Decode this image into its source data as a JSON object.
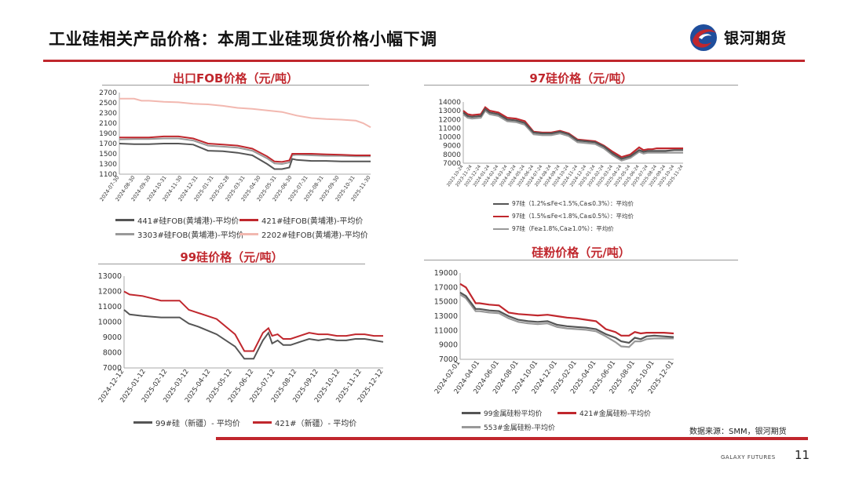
{
  "header": {
    "title": "工业硅相关产品价格：本周工业硅现货价格小幅下调",
    "logo_text": "银河期货",
    "brand_color": "#c0272d"
  },
  "footer": {
    "source": "数据来源：SMM，银河期货",
    "brand": "GALAXY FUTURES",
    "page_number": "11"
  },
  "chart_data": [
    {
      "id": "fob",
      "type": "line",
      "title": "出口FOB价格（元/吨）",
      "ylim": [
        1100,
        2700
      ],
      "yticks": [
        1100,
        1300,
        1500,
        1700,
        1900,
        2100,
        2300,
        2500,
        2700
      ],
      "xlim": [
        0,
        17
      ],
      "xtick_labels": [
        "2024-07-30",
        "2024-08-30",
        "2024-09-30",
        "2024-10-31",
        "2024-11-30",
        "2024-12-31",
        "2025-01-31",
        "2025-02-28",
        "2025-03-31",
        "2025-04-30",
        "2025-05-31",
        "2025-06-30",
        "2025-07-31",
        "2025-08-31",
        "2025-09-30",
        "2025-10-31",
        "2025-11-30"
      ],
      "series": [
        {
          "name": "441#硅FOB(黄埔港)-平均价",
          "color": "#555555",
          "x": [
            0,
            1,
            2,
            3,
            4,
            5,
            6,
            7,
            8,
            9,
            10,
            10.5,
            11,
            11.5,
            11.7,
            12,
            13,
            14,
            15,
            16,
            17
          ],
          "y": [
            1700,
            1690,
            1690,
            1700,
            1700,
            1680,
            1560,
            1550,
            1520,
            1470,
            1300,
            1200,
            1200,
            1230,
            1400,
            1380,
            1360,
            1360,
            1350,
            1350,
            1350
          ]
        },
        {
          "name": "421#硅FOB(黄埔港)-平均价",
          "color": "#c0272d",
          "x": [
            0,
            1,
            2,
            3,
            4,
            5,
            6,
            7,
            8,
            9,
            10,
            10.5,
            11,
            11.5,
            11.7,
            12,
            13,
            14,
            15,
            16,
            17
          ],
          "y": [
            1820,
            1820,
            1820,
            1840,
            1840,
            1800,
            1700,
            1680,
            1660,
            1600,
            1450,
            1350,
            1340,
            1370,
            1500,
            1500,
            1500,
            1490,
            1480,
            1470,
            1470
          ]
        },
        {
          "name": "3303#硅FOB(黄埔港)-平均价",
          "color": "#999999",
          "x": [
            0,
            1,
            2,
            3,
            4,
            5,
            6,
            7,
            8,
            9,
            10,
            10.5,
            11,
            11.5,
            11.7,
            12,
            13,
            14,
            15,
            16,
            17
          ],
          "y": [
            1780,
            1790,
            1790,
            1800,
            1800,
            1760,
            1660,
            1640,
            1620,
            1560,
            1410,
            1310,
            1300,
            1330,
            1470,
            1480,
            1470,
            1460,
            1460,
            1450,
            1450
          ]
        },
        {
          "name": "2202#硅FOB(黄埔港)-平均价",
          "color": "#f2b8b0",
          "x": [
            0,
            1,
            1.5,
            2,
            3,
            4,
            5,
            6,
            7,
            8,
            9,
            10,
            11,
            12,
            13,
            14,
            15,
            16,
            16.5,
            17
          ],
          "y": [
            2580,
            2580,
            2540,
            2540,
            2520,
            2510,
            2480,
            2470,
            2440,
            2400,
            2380,
            2350,
            2320,
            2250,
            2200,
            2180,
            2170,
            2150,
            2100,
            2020
          ]
        }
      ]
    },
    {
      "id": "si97",
      "type": "line",
      "title": "97硅价格（元/吨）",
      "ylim": [
        7000,
        14000
      ],
      "yticks": [
        7000,
        8000,
        9000,
        10000,
        11000,
        12000,
        13000,
        14000
      ],
      "xlim": [
        0,
        25
      ],
      "xtick_labels": [
        "2023-10-24",
        "2023-11-24",
        "2023-12-24",
        "2024-01-24",
        "2024-02-24",
        "2024-03-24",
        "2024-04-24",
        "2024-05-24",
        "2024-06-24",
        "2024-07-24",
        "2024-08-24",
        "2024-09-24",
        "2024-10-24",
        "2024-11-24",
        "2024-12-24",
        "2025-01-24",
        "2025-02-24",
        "2025-03-24",
        "2025-04-24",
        "2025-05-24",
        "2025-06-24",
        "2025-07-24",
        "2025-08-24",
        "2025-09-24",
        "2025-10-24",
        "2025-11-24"
      ],
      "series": [
        {
          "name": "97硅（1.2%≤Fe<1.5%,Ca≤0.3%）：平均价",
          "color": "#555555",
          "x": [
            0,
            0.5,
            1,
            2,
            2.5,
            3,
            4,
            5,
            6,
            7,
            8,
            9,
            10,
            11,
            12,
            13,
            14,
            15,
            16,
            17,
            18,
            19,
            20,
            20.5,
            21,
            21.5,
            22,
            23,
            24,
            25
          ],
          "y": [
            12800,
            12400,
            12300,
            12400,
            13200,
            12800,
            12600,
            12000,
            11900,
            11600,
            10500,
            10400,
            10400,
            10600,
            10300,
            9600,
            9500,
            9400,
            8900,
            8100,
            7500,
            7800,
            8500,
            8300,
            8400,
            8400,
            8400,
            8400,
            8500,
            8500
          ]
        },
        {
          "name": "97硅（1.5%≤Fe<1.8%,Ca≤0.5%）：平均价",
          "color": "#c0272d",
          "x": [
            0,
            0.5,
            1,
            2,
            2.5,
            3,
            4,
            5,
            6,
            7,
            8,
            9,
            10,
            11,
            12,
            13,
            14,
            15,
            16,
            17,
            18,
            19,
            20,
            20.5,
            21,
            21.5,
            22,
            23,
            24,
            25
          ],
          "y": [
            13000,
            12600,
            12500,
            12600,
            13400,
            13000,
            12800,
            12200,
            12100,
            11800,
            10600,
            10500,
            10500,
            10700,
            10400,
            9700,
            9600,
            9500,
            9000,
            8300,
            7700,
            8000,
            8800,
            8500,
            8600,
            8600,
            8700,
            8700,
            8700,
            8700
          ]
        },
        {
          "name": "97硅（Fe≥1.8%,Ca≥1.0%）：平均价",
          "color": "#999999",
          "x": [
            0,
            0.5,
            1,
            2,
            2.5,
            3,
            4,
            5,
            6,
            7,
            8,
            9,
            10,
            11,
            12,
            13,
            14,
            15,
            16,
            17,
            18,
            19,
            20,
            20.5,
            21,
            21.5,
            22,
            23,
            24,
            25
          ],
          "y": [
            12600,
            12200,
            12100,
            12200,
            13000,
            12600,
            12400,
            11800,
            11700,
            11400,
            10300,
            10200,
            10200,
            10400,
            10100,
            9400,
            9300,
            9200,
            8700,
            7900,
            7300,
            7600,
            8300,
            8100,
            8200,
            8200,
            8200,
            8200,
            8200,
            8200
          ]
        }
      ]
    },
    {
      "id": "si99",
      "type": "line",
      "title": "99硅价格（元/吨）",
      "ylim": [
        7000,
        13000
      ],
      "yticks": [
        7000,
        8000,
        9000,
        10000,
        11000,
        12000,
        13000
      ],
      "xlim": [
        0,
        14
      ],
      "xtick_labels": [
        "2024-12-12",
        "2025-01-12",
        "2025-02-12",
        "2025-03-12",
        "2025-04-12",
        "2025-05-12",
        "2025-06-12",
        "2025-07-12",
        "2025-08-12",
        "2025-09-12",
        "2025-10-12",
        "2025-11-12",
        "2025-12-12"
      ],
      "series": [
        {
          "name": "99#硅（新疆）- 平均价",
          "color": "#555555",
          "x": [
            0,
            0.3,
            1,
            2,
            3,
            3.5,
            4,
            5,
            6,
            6.5,
            7,
            7.5,
            7.8,
            8,
            8.3,
            8.6,
            9,
            9.5,
            10,
            10.5,
            11,
            11.5,
            12,
            12.5,
            13,
            13.5,
            14
          ],
          "y": [
            10800,
            10500,
            10400,
            10300,
            10300,
            9900,
            9700,
            9200,
            8400,
            7600,
            7600,
            8800,
            9300,
            8600,
            8800,
            8500,
            8500,
            8700,
            8900,
            8800,
            8900,
            8800,
            8800,
            8900,
            8900,
            8800,
            8700
          ]
        },
        {
          "name": "421#（新疆）- 平均价",
          "color": "#c0272d",
          "x": [
            0,
            0.3,
            1,
            2,
            3,
            3.5,
            4,
            5,
            6,
            6.5,
            7,
            7.5,
            7.8,
            8,
            8.3,
            8.6,
            9,
            9.5,
            10,
            10.5,
            11,
            11.5,
            12,
            12.5,
            13,
            13.5,
            14
          ],
          "y": [
            12000,
            11800,
            11700,
            11400,
            11400,
            10800,
            10600,
            10200,
            9200,
            8100,
            8100,
            9300,
            9600,
            9100,
            9200,
            8900,
            8900,
            9100,
            9300,
            9200,
            9200,
            9100,
            9100,
            9200,
            9200,
            9100,
            9100
          ]
        }
      ]
    },
    {
      "id": "powder",
      "type": "line",
      "title": "硅粉价格（元/吨）",
      "ylim": [
        7000,
        19000
      ],
      "yticks": [
        7000,
        9000,
        11000,
        13000,
        15000,
        17000,
        19000
      ],
      "xlim": [
        0,
        11
      ],
      "xtick_labels": [
        "2024-02-01",
        "2024-04-01",
        "2024-06-01",
        "2024-08-01",
        "2024-10-01",
        "2024-12-01",
        "2025-02-01",
        "2025-04-01",
        "2025-06-01",
        "2025-08-01",
        "2025-10-01",
        "2025-12-01"
      ],
      "series": [
        {
          "name": "99金属硅粉平均价",
          "color": "#555555",
          "x": [
            0,
            0.3,
            0.8,
            1,
            1.5,
            2,
            2.5,
            3,
            3.5,
            4,
            4.5,
            5,
            5.5,
            6,
            6.5,
            7,
            7.5,
            8,
            8.3,
            8.7,
            9,
            9.3,
            9.6,
            10,
            10.5,
            11
          ],
          "y": [
            16300,
            15800,
            14000,
            14000,
            13800,
            13700,
            13000,
            12500,
            12300,
            12200,
            12300,
            11800,
            11600,
            11500,
            11400,
            11200,
            10500,
            10000,
            9500,
            9300,
            10000,
            9800,
            10200,
            10300,
            10200,
            10100
          ]
        },
        {
          "name": "421#金属硅粉-平均价",
          "color": "#c0272d",
          "x": [
            0,
            0.3,
            0.8,
            1,
            1.5,
            2,
            2.5,
            3,
            3.5,
            4,
            4.5,
            5,
            5.5,
            6,
            6.5,
            7,
            7.5,
            8,
            8.3,
            8.7,
            9,
            9.3,
            9.6,
            10,
            10.5,
            11
          ],
          "y": [
            17500,
            17000,
            14800,
            14800,
            14600,
            14500,
            13500,
            13300,
            13200,
            13100,
            13200,
            13000,
            12800,
            12700,
            12500,
            12300,
            11200,
            10800,
            10300,
            10300,
            10800,
            10600,
            10700,
            10700,
            10700,
            10600
          ]
        },
        {
          "name": "553#金属硅粉-平均价",
          "color": "#999999",
          "x": [
            0,
            0.3,
            0.8,
            1,
            1.5,
            2,
            2.5,
            3,
            3.5,
            4,
            4.5,
            5,
            5.5,
            6,
            6.5,
            7,
            7.5,
            8,
            8.3,
            8.7,
            9,
            9.3,
            9.6,
            10,
            10.5,
            11
          ],
          "y": [
            16000,
            15500,
            13700,
            13700,
            13500,
            13400,
            12700,
            12200,
            12000,
            11900,
            12000,
            11500,
            11300,
            11200,
            11100,
            10900,
            10200,
            9400,
            8800,
            8700,
            9500,
            9500,
            9800,
            9900,
            9900,
            9900
          ]
        }
      ]
    }
  ]
}
